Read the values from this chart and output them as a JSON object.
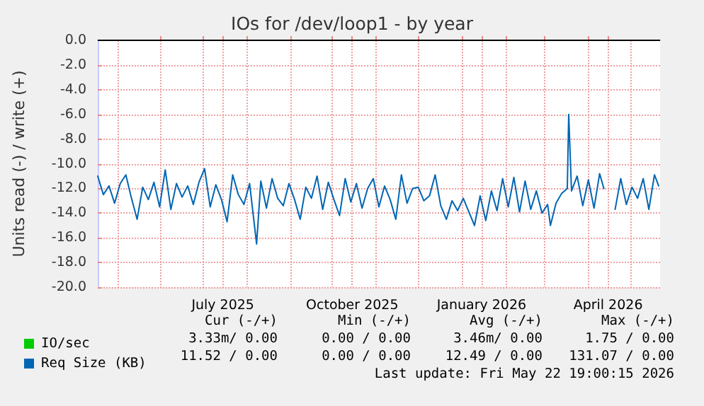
{
  "chart_data": {
    "type": "line",
    "title": "IOs for /dev/loop1 - by year",
    "ylabel": "Units read (-) / write (+)",
    "x": [
      "2025-04-17",
      "2025-04-21",
      "2025-04-25",
      "2025-04-29",
      "2025-05-03",
      "2025-05-07",
      "2025-05-11",
      "2025-05-15",
      "2025-05-19",
      "2025-05-23",
      "2025-05-27",
      "2025-05-31",
      "2025-06-04",
      "2025-06-08",
      "2025-06-12",
      "2025-06-16",
      "2025-06-20",
      "2025-06-24",
      "2025-06-28",
      "2025-07-02",
      "2025-07-06",
      "2025-07-10",
      "2025-07-14",
      "2025-07-18",
      "2025-07-22",
      "2025-07-26",
      "2025-07-30",
      "2025-08-03",
      "2025-08-08",
      "2025-08-11",
      "2025-08-15",
      "2025-08-19",
      "2025-08-23",
      "2025-08-27",
      "2025-08-31",
      "2025-09-04",
      "2025-09-08",
      "2025-09-12",
      "2025-09-16",
      "2025-09-20",
      "2025-09-24",
      "2025-09-28",
      "2025-10-02",
      "2025-10-06",
      "2025-10-10",
      "2025-10-14",
      "2025-10-18",
      "2025-10-22",
      "2025-10-26",
      "2025-10-30",
      "2025-11-03",
      "2025-11-07",
      "2025-11-11",
      "2025-11-15",
      "2025-11-19",
      "2025-11-23",
      "2025-11-27",
      "2025-12-01",
      "2025-12-05",
      "2025-12-09",
      "2025-12-13",
      "2025-12-17",
      "2025-12-21",
      "2025-12-25",
      "2025-12-29",
      "2026-01-02",
      "2026-01-06",
      "2026-01-10",
      "2026-01-14",
      "2026-01-18",
      "2026-01-22",
      "2026-01-26",
      "2026-01-30",
      "2026-02-03",
      "2026-02-07",
      "2026-02-11",
      "2026-02-15",
      "2026-02-19",
      "2026-02-23",
      "2026-02-27",
      "2026-03-03",
      "2026-03-05",
      "2026-03-09",
      "2026-03-13",
      "2026-03-17",
      "2026-03-18",
      "2026-03-20",
      "2026-03-24",
      "2026-03-28",
      "2026-04-01",
      "2026-04-05",
      "2026-04-09",
      "2026-04-12",
      "2026-04-16",
      "2026-04-20",
      "2026-04-24",
      "2026-04-28",
      "2026-05-02",
      "2026-05-06",
      "2026-05-10",
      "2026-05-14",
      "2026-05-18",
      "2026-05-21"
    ],
    "series": [
      {
        "name": "IO/sec",
        "color": "#00cc00",
        "values": [
          null,
          null,
          null,
          null,
          null,
          null,
          null,
          null,
          null,
          null,
          null,
          null,
          null,
          null,
          null,
          null,
          null,
          null,
          null,
          null,
          null,
          null,
          null,
          null,
          null,
          null,
          null,
          null,
          null,
          null,
          null,
          null,
          null,
          null,
          null,
          null,
          null,
          null,
          null,
          null,
          null,
          null,
          null,
          null,
          null,
          null,
          null,
          null,
          null,
          null,
          null,
          null,
          null,
          null,
          null,
          null,
          null,
          null,
          null,
          null,
          null,
          null,
          null,
          null,
          null,
          null,
          null,
          null,
          null,
          null,
          null,
          null,
          null,
          null,
          null,
          null,
          null,
          null,
          null,
          null,
          null,
          null,
          null,
          null,
          null,
          null,
          null,
          null,
          null,
          null,
          null,
          null,
          null,
          null,
          null,
          null,
          null,
          null,
          null,
          null,
          null,
          null,
          null
        ]
      },
      {
        "name": "Req Size (KB)",
        "color": "#0066b3",
        "values": [
          -11.0,
          -12.5,
          -11.8,
          -13.2,
          -11.6,
          -10.9,
          -12.8,
          -14.5,
          -11.9,
          -12.9,
          -11.5,
          -13.5,
          -10.5,
          -13.7,
          -11.6,
          -12.7,
          -11.8,
          -13.3,
          -11.5,
          -10.4,
          -13.5,
          -11.7,
          -12.9,
          -14.7,
          -10.9,
          -12.5,
          -13.3,
          -11.6,
          -16.5,
          -11.4,
          -13.6,
          -11.2,
          -12.8,
          -13.4,
          -11.6,
          -12.9,
          -14.5,
          -11.9,
          -12.8,
          -11.0,
          -13.7,
          -11.5,
          -12.9,
          -14.2,
          -11.2,
          -13.1,
          -11.6,
          -13.6,
          -12.0,
          -11.2,
          -13.5,
          -11.8,
          -12.9,
          -14.5,
          -10.9,
          -13.2,
          -12.0,
          -11.9,
          -13.0,
          -12.6,
          -10.9,
          -13.4,
          -14.5,
          -13.0,
          -13.8,
          -12.8,
          -13.9,
          -15.0,
          -12.6,
          -14.6,
          -12.2,
          -13.8,
          -11.2,
          -13.5,
          -11.1,
          -13.9,
          -11.4,
          -13.7,
          -12.2,
          -14.0,
          -13.3,
          -15.0,
          -13.2,
          -12.4,
          -12.0,
          -6.0,
          -12.2,
          -11.0,
          -13.4,
          -11.3,
          -13.6,
          -10.8,
          -12.0,
          null,
          -13.7,
          -11.2,
          -13.3,
          -11.9,
          -12.8,
          -11.2,
          -13.7,
          -10.9,
          -11.8
        ]
      }
    ],
    "xlim": [
      "2025-04-17",
      "2026-05-22"
    ],
    "xticks": [
      {
        "value": "2025-05-01",
        "label": null
      },
      {
        "value": "2025-06-01",
        "label": null
      },
      {
        "value": "2025-07-01",
        "label": null
      },
      {
        "value": "2025-07-15",
        "label": "July 2025"
      },
      {
        "value": "2025-08-01",
        "label": null
      },
      {
        "value": "2025-09-01",
        "label": null
      },
      {
        "value": "2025-10-01",
        "label": null
      },
      {
        "value": "2025-10-15",
        "label": "October 2025"
      },
      {
        "value": "2025-11-01",
        "label": null
      },
      {
        "value": "2025-12-01",
        "label": null
      },
      {
        "value": "2026-01-01",
        "label": null
      },
      {
        "value": "2026-01-15",
        "label": "January 2026"
      },
      {
        "value": "2026-02-01",
        "label": null
      },
      {
        "value": "2026-03-01",
        "label": null
      },
      {
        "value": "2026-04-01",
        "label": null
      },
      {
        "value": "2026-04-15",
        "label": "April 2026"
      },
      {
        "value": "2026-05-01",
        "label": null
      }
    ],
    "ylim": [
      -20,
      0
    ],
    "yticks": [
      {
        "value": -20,
        "label": "-20.0"
      },
      {
        "value": -18,
        "label": "-18.0"
      },
      {
        "value": -16,
        "label": "-16.0"
      },
      {
        "value": -14,
        "label": "-14.0"
      },
      {
        "value": -12,
        "label": "-12.0"
      },
      {
        "value": -10,
        "label": "-10.0"
      },
      {
        "value": -8,
        "label": "-8.0"
      },
      {
        "value": -6,
        "label": "-6.0"
      },
      {
        "value": -4,
        "label": "-4.0"
      },
      {
        "value": -2,
        "label": "-2.0"
      },
      {
        "value": 0,
        "label": "0.0"
      }
    ],
    "ref_lines": [
      {
        "axis": "y",
        "value": 0,
        "label": null,
        "color": "#000000"
      }
    ],
    "grid": true,
    "legend": "bottom left",
    "marker": "none",
    "line_style": "solid",
    "annotations": [
      "Cur (-/+)",
      "Min (-/+)",
      "Avg (-/+)",
      "Max (-/+)",
      "3.33m/ 0.00",
      "0.00 / 0.00",
      "3.46m/ 0.00",
      "1.75 / 0.00",
      "11.52 / 0.00",
      "0.00 / 0.00",
      "12.49 / 0.00",
      "131.07 / 0.00",
      "Last update: Fri May 22 19:00:15 2026"
    ]
  }
}
